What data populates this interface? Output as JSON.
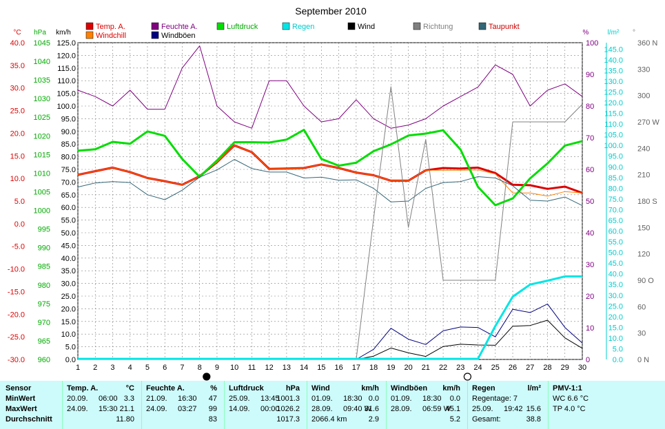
{
  "title": "September 2010",
  "colors": {
    "temp": "#dd0000",
    "humidity": "#800080",
    "pressure": "#00dd00",
    "rain": "#00e5e5",
    "wind": "#000000",
    "direction": "#808080",
    "dewpoint": "#336677",
    "windchill": "#ff8000",
    "gusts": "#000080",
    "grid": "#808080",
    "summary_bg": "#cdfafa"
  },
  "legend": [
    {
      "label": "Temp. A.",
      "color": "#dd0000",
      "text_color": "#dd0000",
      "key": "temp"
    },
    {
      "label": "Windchill",
      "color": "#ff8000",
      "text_color": "#dd0000",
      "key": "windchill"
    },
    {
      "label": "Feuchte A.",
      "color": "#800080",
      "text_color": "#800080",
      "key": "humidity"
    },
    {
      "label": "Windböen",
      "color": "#000080",
      "text_color": "#000000",
      "key": "gusts"
    },
    {
      "label": "Luftdruck",
      "color": "#00dd00",
      "text_color": "#00aa00",
      "key": "pressure"
    },
    {
      "label": "Regen",
      "color": "#00e5e5",
      "text_color": "#00cccc",
      "key": "rain"
    },
    {
      "label": "Wind",
      "color": "#000000",
      "text_color": "#000000",
      "key": "wind"
    },
    {
      "label": "Richtung",
      "color": "#808080",
      "text_color": "#808080",
      "key": "direction"
    },
    {
      "label": "Taupunkt",
      "color": "#336677",
      "text_color": "#cc0000",
      "key": "dewpoint"
    }
  ],
  "axis_units": {
    "temp": "°C",
    "pressure": "hPa",
    "wind": "km/h",
    "humidity": "%",
    "rain": "l/m²",
    "direction": "°"
  },
  "axes": {
    "temp": {
      "min": -30,
      "max": 40,
      "step": 5,
      "color": "#dd0000"
    },
    "pressure": {
      "min": 960,
      "max": 1045,
      "step": 5,
      "color": "#00aa00"
    },
    "wind": {
      "min": 0,
      "max": 125,
      "step": 5,
      "color": "#000000"
    },
    "humidity": {
      "min": 0,
      "max": 100,
      "step": 10,
      "color": "#800080"
    },
    "rain": {
      "min": 0,
      "max": 148,
      "step": 5,
      "color": "#00cccc"
    },
    "direction_ticks": [
      "0 N",
      "30",
      "60",
      "90 O",
      "120",
      "150",
      "180 S",
      "210",
      "240",
      "270 W",
      "300",
      "330",
      "360 N"
    ]
  },
  "chart_data": {
    "type": "line",
    "title": "September 2010",
    "x": [
      1,
      2,
      3,
      4,
      5,
      6,
      7,
      8,
      9,
      10,
      11,
      12,
      13,
      14,
      15,
      16,
      17,
      18,
      19,
      20,
      21,
      22,
      23,
      24,
      25,
      26,
      27,
      28,
      29,
      30
    ],
    "moon_markers": [
      {
        "day": 8.4,
        "phase": "full"
      },
      {
        "day": 23.4,
        "phase": "new"
      }
    ],
    "series": [
      {
        "name": "Temp. A.",
        "key": "temp",
        "axis": "temp",
        "width": 3,
        "values": [
          10.8,
          11.6,
          12.4,
          11.4,
          10.1,
          9.4,
          8.6,
          10.5,
          13.6,
          17.3,
          15.8,
          12.1,
          12.2,
          12.3,
          13.1,
          12.3,
          11.3,
          10.7,
          9.5,
          9.5,
          11.8,
          12.3,
          12.2,
          12.4,
          11.2,
          8.6,
          8.5,
          7.7,
          8.2,
          6.8
        ]
      },
      {
        "name": "Windchill",
        "key": "windchill",
        "axis": "temp",
        "width": 1,
        "values": [
          10.8,
          11.6,
          12.4,
          11.4,
          10.1,
          9.4,
          8.6,
          10.5,
          13.6,
          17.3,
          15.8,
          12.1,
          12.2,
          12.3,
          13.1,
          12.3,
          11.3,
          10.7,
          9.5,
          9.5,
          11.8,
          11.8,
          11.8,
          11.9,
          11.0,
          6.8,
          6.8,
          6.1,
          7.1,
          6.8
        ]
      },
      {
        "name": "Feuchte A.",
        "key": "humidity",
        "axis": "humidity",
        "width": 1,
        "values": [
          85,
          83,
          80,
          85,
          79,
          79,
          92,
          99,
          80,
          75,
          73,
          88,
          88,
          80,
          75,
          76,
          82,
          76,
          73,
          74,
          76,
          80,
          83,
          86,
          93,
          90,
          80,
          85,
          87,
          83
        ]
      },
      {
        "name": "Luftdruck",
        "key": "pressure",
        "axis": "pressure",
        "width": 3,
        "values": [
          1016.0,
          1016.4,
          1018.4,
          1017.9,
          1021.2,
          1020.0,
          1013.8,
          1009.0,
          1013.4,
          1018.3,
          1018.3,
          1018.2,
          1019.0,
          1021.6,
          1013.8,
          1012.0,
          1012.8,
          1015.9,
          1017.7,
          1020.1,
          1020.6,
          1021.5,
          1016.3,
          1006.3,
          1001.4,
          1003.2,
          1008.6,
          1012.6,
          1017.4,
          1018.6
        ]
      },
      {
        "name": "Taupunkt",
        "key": "dewpoint",
        "axis": "temp",
        "width": 1,
        "values": [
          8.1,
          9.0,
          9.3,
          9.1,
          6.4,
          5.3,
          7.4,
          10.3,
          11.9,
          14.2,
          12.2,
          11.4,
          11.4,
          10.1,
          10.3,
          9.6,
          9.7,
          7.8,
          4.8,
          5.0,
          7.8,
          9.1,
          9.3,
          10.4,
          10.1,
          8.4,
          5.2,
          5.0,
          5.9,
          4.0
        ]
      },
      {
        "name": "Richtung",
        "key": "direction",
        "axis": "direction",
        "width": 1,
        "values": [
          0,
          0,
          0,
          0,
          0,
          0,
          0,
          0,
          0,
          0,
          0,
          0,
          0,
          0,
          0,
          0,
          0,
          160,
          310,
          150,
          250,
          90,
          90,
          90,
          90,
          270,
          270,
          270,
          270,
          290
        ]
      },
      {
        "name": "Windböen",
        "key": "gusts",
        "axis": "wind",
        "width": 1,
        "values": [
          0,
          0,
          0,
          0,
          0,
          0,
          0,
          0,
          0,
          0,
          0,
          0,
          0,
          0,
          0,
          0,
          0,
          4.0,
          12.3,
          8.0,
          5.9,
          11.3,
          12.8,
          12.6,
          8.9,
          19.8,
          18.5,
          21.9,
          12.6,
          6.5
        ]
      },
      {
        "name": "Wind",
        "key": "wind",
        "axis": "wind",
        "width": 1,
        "values": [
          0,
          0,
          0,
          0,
          0,
          0,
          0,
          0,
          0,
          0,
          0,
          0,
          0,
          0,
          0,
          0,
          0,
          1.3,
          4.5,
          2.6,
          1.2,
          5.1,
          6.0,
          5.7,
          5.6,
          13.1,
          13.4,
          15.5,
          8.5,
          4.4
        ]
      },
      {
        "name": "Regen",
        "key": "rain",
        "axis": "rain",
        "width": 3,
        "values": [
          0.3,
          0.3,
          0.3,
          0.3,
          0.3,
          0.3,
          0.3,
          0.3,
          0.3,
          0.3,
          0.3,
          0.3,
          0.3,
          0.3,
          0.3,
          0.3,
          0.3,
          0.3,
          0.3,
          0.3,
          0.3,
          0.3,
          0.3,
          0.3,
          15.6,
          29.3,
          35.0,
          36.8,
          38.8,
          38.8
        ]
      }
    ]
  },
  "summary": {
    "row_labels": [
      "Sensor",
      "MinWert",
      "MaxWert",
      "Durchschnitt"
    ],
    "columns": [
      {
        "title": "Temp. A.",
        "unit": "°C",
        "rows": [
          {
            "date": "20.09.",
            "time": "06:00",
            "value": "3.3"
          },
          {
            "date": "24.09.",
            "time": "15:30",
            "value": "21.1"
          },
          {
            "date": "",
            "time": "",
            "value": "11.80"
          }
        ]
      },
      {
        "title": "Feuchte A.",
        "unit": "%",
        "rows": [
          {
            "date": "21.09.",
            "time": "16:30",
            "value": "47"
          },
          {
            "date": "24.09.",
            "time": "03:27",
            "value": "99"
          },
          {
            "date": "",
            "time": "",
            "value": "83"
          }
        ]
      },
      {
        "title": "Luftdruck",
        "unit": "hPa",
        "rows": [
          {
            "date": "25.09.",
            "time": "13:45",
            "value": "1001.3"
          },
          {
            "date": "14.09.",
            "time": "00:00",
            "value": "1026.2"
          },
          {
            "date": "",
            "time": "",
            "value": "1017.3"
          }
        ]
      },
      {
        "title": "Wind",
        "unit": "km/h",
        "rows": [
          {
            "date": "01.09.",
            "time": "18:30",
            "value": "0.0"
          },
          {
            "date": "28.09.",
            "time": "09:40 W",
            "value": "31.6"
          },
          {
            "date": "2066.4 km",
            "time": "",
            "value": "2.9"
          }
        ]
      },
      {
        "title": "Windböen",
        "unit": "km/h",
        "rows": [
          {
            "date": "01.09.",
            "time": "18:30",
            "value": "0.0"
          },
          {
            "date": "28.09.",
            "time": "06:59 W",
            "value": "45.1"
          },
          {
            "date": "",
            "time": "",
            "value": "5.2"
          }
        ]
      },
      {
        "title": "Regen",
        "unit": "l/m²",
        "rows": [
          {
            "date": "Regentage: 7",
            "time": "",
            "value": ""
          },
          {
            "date": "25.09.",
            "time": "19:42",
            "value": "15.6"
          },
          {
            "date": "Gesamt:",
            "time": "",
            "value": "38.8"
          }
        ]
      },
      {
        "title": "PMV-1:1",
        "unit": "",
        "rows": [
          {
            "date": "WC 6.6 °C",
            "time": "",
            "value": ""
          },
          {
            "date": "TP 4.0 °C",
            "time": "",
            "value": ""
          },
          {
            "date": "",
            "time": "",
            "value": ""
          }
        ]
      }
    ]
  }
}
